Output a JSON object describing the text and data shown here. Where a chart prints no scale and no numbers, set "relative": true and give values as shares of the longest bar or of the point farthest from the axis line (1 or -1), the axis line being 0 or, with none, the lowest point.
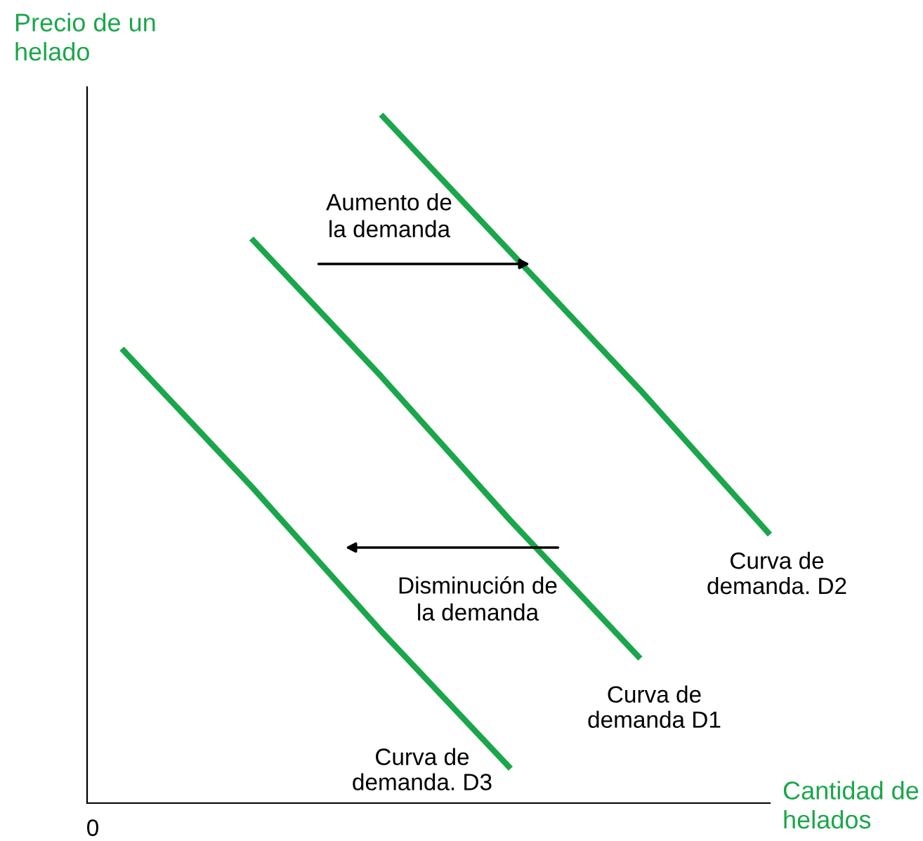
{
  "chart_data": {
    "type": "line",
    "relative": true,
    "xlabel": "Cantidad de\nhelados",
    "ylabel": "Precio de un\nhelado",
    "categories": [
      null,
      null,
      null,
      null,
      null,
      null
    ],
    "marker": "none",
    "line_style": "solid",
    "legend": false,
    "annotations": [
      "Aumento de\nla demanda",
      "Disminución de\nla demanda",
      "0"
    ],
    "series": [
      {
        "name": "Curva de\ndemanda. D2",
        "color": "#1aa64a",
        "values": [
          null,
          null,
          1.0,
          0.8,
          0.6,
          0.39
        ]
      },
      {
        "name": "Curva de\ndemanda D1",
        "color": "#1aa64a",
        "values": [
          null,
          0.82,
          0.62,
          0.41,
          0.21,
          null
        ]
      },
      {
        "name": "Curva de\ndemanda. D3",
        "color": "#1aa64a",
        "values": [
          0.66,
          0.46,
          0.25,
          0.05,
          null,
          null
        ]
      }
    ]
  }
}
